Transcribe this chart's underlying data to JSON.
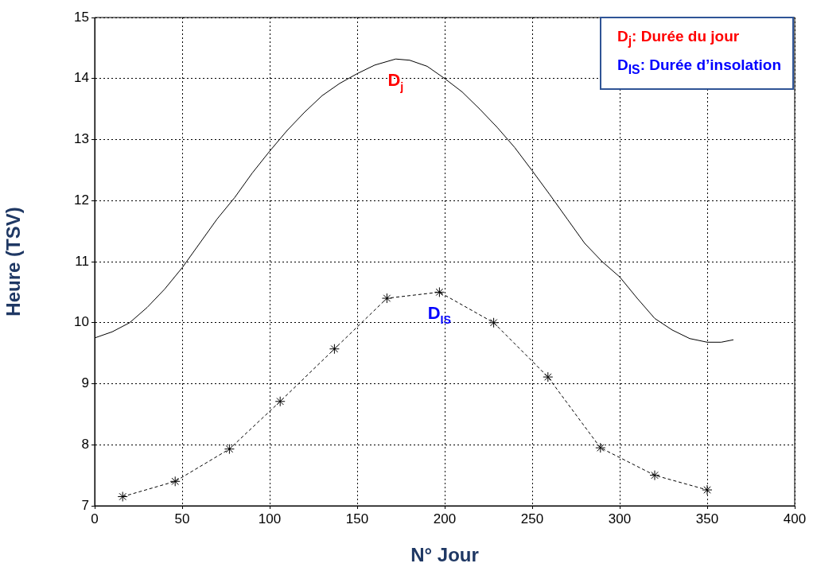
{
  "chart_data": {
    "type": "line",
    "xlabel": "N° Jour",
    "ylabel": "Heure (TSV)",
    "xlim": [
      0,
      400
    ],
    "xticks": [
      0,
      50,
      100,
      150,
      200,
      250,
      300,
      350,
      400
    ],
    "ylim": [
      7,
      15
    ],
    "yticks": [
      7,
      8,
      9,
      10,
      11,
      12,
      13,
      14,
      15
    ],
    "grid": true,
    "series": [
      {
        "name": "D$_{j}$",
        "color": "#000000",
        "marker": "none",
        "line_style": "solid",
        "x": [
          0,
          10,
          20,
          30,
          40,
          50,
          60,
          70,
          80,
          90,
          100,
          110,
          120,
          130,
          140,
          150,
          160,
          172,
          180,
          190,
          200,
          210,
          220,
          230,
          240,
          250,
          260,
          270,
          280,
          290,
          300,
          310,
          320,
          330,
          340,
          350,
          358,
          365
        ],
        "values": [
          9.75,
          9.85,
          10.0,
          10.25,
          10.55,
          10.9,
          11.3,
          11.7,
          12.05,
          12.45,
          12.81,
          13.15,
          13.45,
          13.72,
          13.92,
          14.08,
          14.22,
          14.32,
          14.3,
          14.2,
          14.0,
          13.78,
          13.5,
          13.2,
          12.87,
          12.49,
          12.1,
          11.7,
          11.3,
          11.0,
          10.75,
          10.4,
          10.07,
          9.88,
          9.74,
          9.68,
          9.68,
          9.72
        ]
      },
      {
        "name": "D$_{IS}$",
        "color": "#000000",
        "marker": "cross",
        "line_style": "dashed",
        "x": [
          16,
          46,
          77,
          106,
          137,
          167,
          197,
          228,
          259,
          289,
          320,
          350
        ],
        "values": [
          7.15,
          7.4,
          7.93,
          8.71,
          9.57,
          10.4,
          10.5,
          10.0,
          9.11,
          7.95,
          7.5,
          7.26
        ]
      }
    ],
    "annotations": [
      "D$_{j}$: Durée du jour",
      "D$_{IS}$: Durée d’insolation"
    ]
  }
}
